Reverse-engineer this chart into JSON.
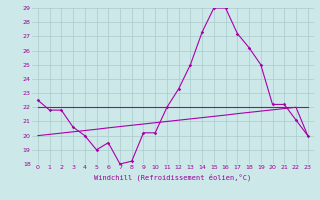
{
  "x": [
    0,
    1,
    2,
    3,
    4,
    5,
    6,
    7,
    8,
    9,
    10,
    11,
    12,
    13,
    14,
    15,
    16,
    17,
    18,
    19,
    20,
    21,
    22,
    23
  ],
  "y_main": [
    22.5,
    21.8,
    21.8,
    20.6,
    20.0,
    19.0,
    19.5,
    18.0,
    18.2,
    20.2,
    20.2,
    22.0,
    23.3,
    25.0,
    27.3,
    29.0,
    29.0,
    27.2,
    26.2,
    25.0,
    22.2,
    22.2,
    21.1,
    20.0
  ],
  "y_flat": [
    22.0,
    22.0,
    22.0,
    22.0,
    22.0,
    22.0,
    22.0,
    22.0,
    22.0,
    22.0,
    22.0,
    22.0,
    22.0,
    22.0,
    22.0,
    22.0,
    22.0,
    22.0,
    22.0,
    22.0,
    22.0,
    22.0,
    22.0,
    22.0
  ],
  "y_slant": [
    20.0,
    20.09,
    20.18,
    20.27,
    20.36,
    20.45,
    20.55,
    20.64,
    20.73,
    20.82,
    20.91,
    21.0,
    21.09,
    21.18,
    21.27,
    21.36,
    21.45,
    21.55,
    21.64,
    21.73,
    21.82,
    21.91,
    22.0,
    20.0
  ],
  "bg_color": "#cce8e8",
  "line_color": "#aa00aa",
  "grid_color": "#aacccc",
  "ylim": [
    18,
    29
  ],
  "xlim": [
    -0.5,
    23.5
  ],
  "yticks": [
    18,
    19,
    20,
    21,
    22,
    23,
    24,
    25,
    26,
    27,
    28,
    29
  ],
  "xticks": [
    0,
    1,
    2,
    3,
    4,
    5,
    6,
    7,
    8,
    9,
    10,
    11,
    12,
    13,
    14,
    15,
    16,
    17,
    18,
    19,
    20,
    21,
    22,
    23
  ],
  "xlabel": "Windchill (Refroidissement éolien,°C)",
  "xlabel_color": "#990099",
  "tick_color": "#990099"
}
